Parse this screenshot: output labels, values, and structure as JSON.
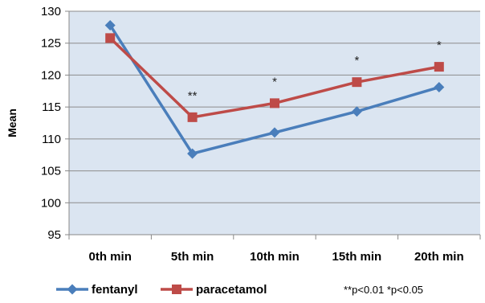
{
  "chart_data": {
    "type": "line",
    "title": "",
    "xlabel": "",
    "ylabel": "Mean",
    "categories": [
      "0th min",
      "5th min",
      "10th min",
      "15th min",
      "20th min"
    ],
    "series": [
      {
        "name": "fentanyl",
        "values": [
          127.8,
          107.7,
          111.0,
          114.3,
          118.1
        ],
        "color": "#4a7ebb",
        "marker": "diamond"
      },
      {
        "name": "paracetamol",
        "values": [
          125.8,
          113.4,
          115.6,
          118.9,
          121.3
        ],
        "color": "#be4b48",
        "marker": "square"
      }
    ],
    "ylim": [
      95,
      130
    ],
    "yticks": [
      95,
      100,
      105,
      110,
      115,
      120,
      125,
      130
    ],
    "grid": true,
    "plot_background": "#dbe5f1",
    "legend_position": "bottom",
    "annotations": [
      {
        "category": "5th min",
        "text": "**"
      },
      {
        "category": "10th min",
        "text": "*"
      },
      {
        "category": "15th min",
        "text": "*"
      },
      {
        "category": "20th min",
        "text": "*"
      }
    ],
    "footnote": "**p<0.01   *p<0.05"
  }
}
